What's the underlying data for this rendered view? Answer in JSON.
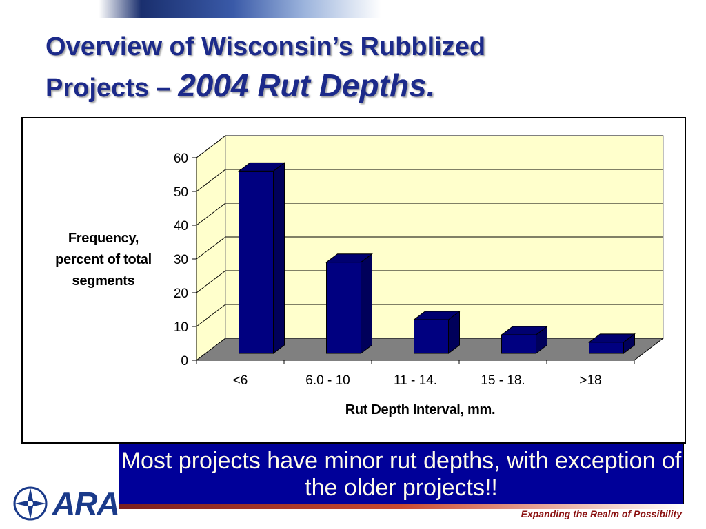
{
  "slide": {
    "title_line1": "Overview of Wisconsin’s Rubblized",
    "title_line2": "Projects –",
    "title_emphasis": "2004 Rut Depths.",
    "caption": "Most projects have minor rut depths, with exception of the older projects!!",
    "logo_text": "ARA",
    "tagline": "Expanding the Realm of Possibility"
  },
  "colors": {
    "title": "#1c2a8a",
    "bar_front": "#000080",
    "wall": "#ffffcc",
    "floor": "#808080",
    "caption_bg": "#000099",
    "tagline": "#8a1010"
  },
  "chart_data": {
    "type": "bar",
    "title": "",
    "xlabel": "Rut Depth Interval, mm.",
    "ylabel": "Frequency, percent of total segments",
    "categories": [
      "<6",
      "6.0 - 10",
      "11 - 14.",
      "15 - 18.",
      ">18"
    ],
    "values": [
      54,
      27,
      10,
      5.5,
      3.3
    ],
    "ylim": [
      0,
      60
    ],
    "yticks": [
      0,
      10,
      20,
      30,
      40,
      50,
      60
    ],
    "grid": true,
    "style": "3d"
  }
}
